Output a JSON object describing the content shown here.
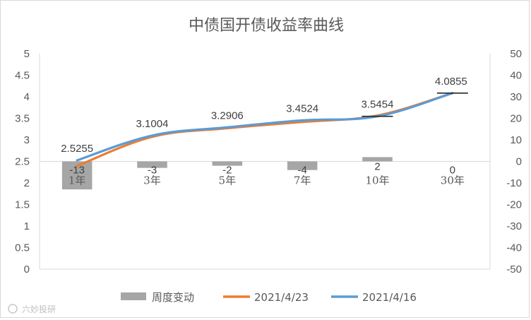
{
  "chart_data": {
    "type": "bar",
    "title": "中债国开债收益率曲线",
    "categories": [
      "1年",
      "3年",
      "5年",
      "7年",
      "10年",
      "30年"
    ],
    "y_left": {
      "min": 0,
      "max": 5,
      "step": 0.5,
      "ticks": [
        "0",
        "0.5",
        "1",
        "1.5",
        "2",
        "2.5",
        "3",
        "3.5",
        "4",
        "4.5",
        "5"
      ]
    },
    "y_right": {
      "min": -50,
      "max": 50,
      "step": 10,
      "ticks": [
        "-50",
        "-40",
        "-30",
        "-20",
        "-10",
        "0",
        "10",
        "20",
        "30",
        "40",
        "50"
      ]
    },
    "series": [
      {
        "name": "周度变动",
        "type": "bar",
        "axis": "right",
        "color": "#a6a6a6",
        "values": [
          -13,
          -3,
          -2,
          -4,
          2,
          0
        ],
        "labels": [
          "-13",
          "-3",
          "-2",
          "-4",
          "2",
          "0"
        ]
      },
      {
        "name": "2021/4/23",
        "type": "line",
        "axis": "left",
        "color": "#ed7d31",
        "values": [
          2.395,
          3.07,
          3.27,
          3.415,
          3.565,
          4.0855
        ]
      },
      {
        "name": "2021/4/16",
        "type": "line",
        "axis": "left",
        "color": "#5b9bd5",
        "values": [
          2.5255,
          3.1004,
          3.2906,
          3.4524,
          3.5454,
          4.0855
        ],
        "labels": [
          "2.5255",
          "3.1004",
          "3.2906",
          "3.4524",
          "3.5454",
          "4.0855"
        ]
      }
    ],
    "grid": false,
    "legend_position": "bottom"
  },
  "watermark": "六妙投研"
}
